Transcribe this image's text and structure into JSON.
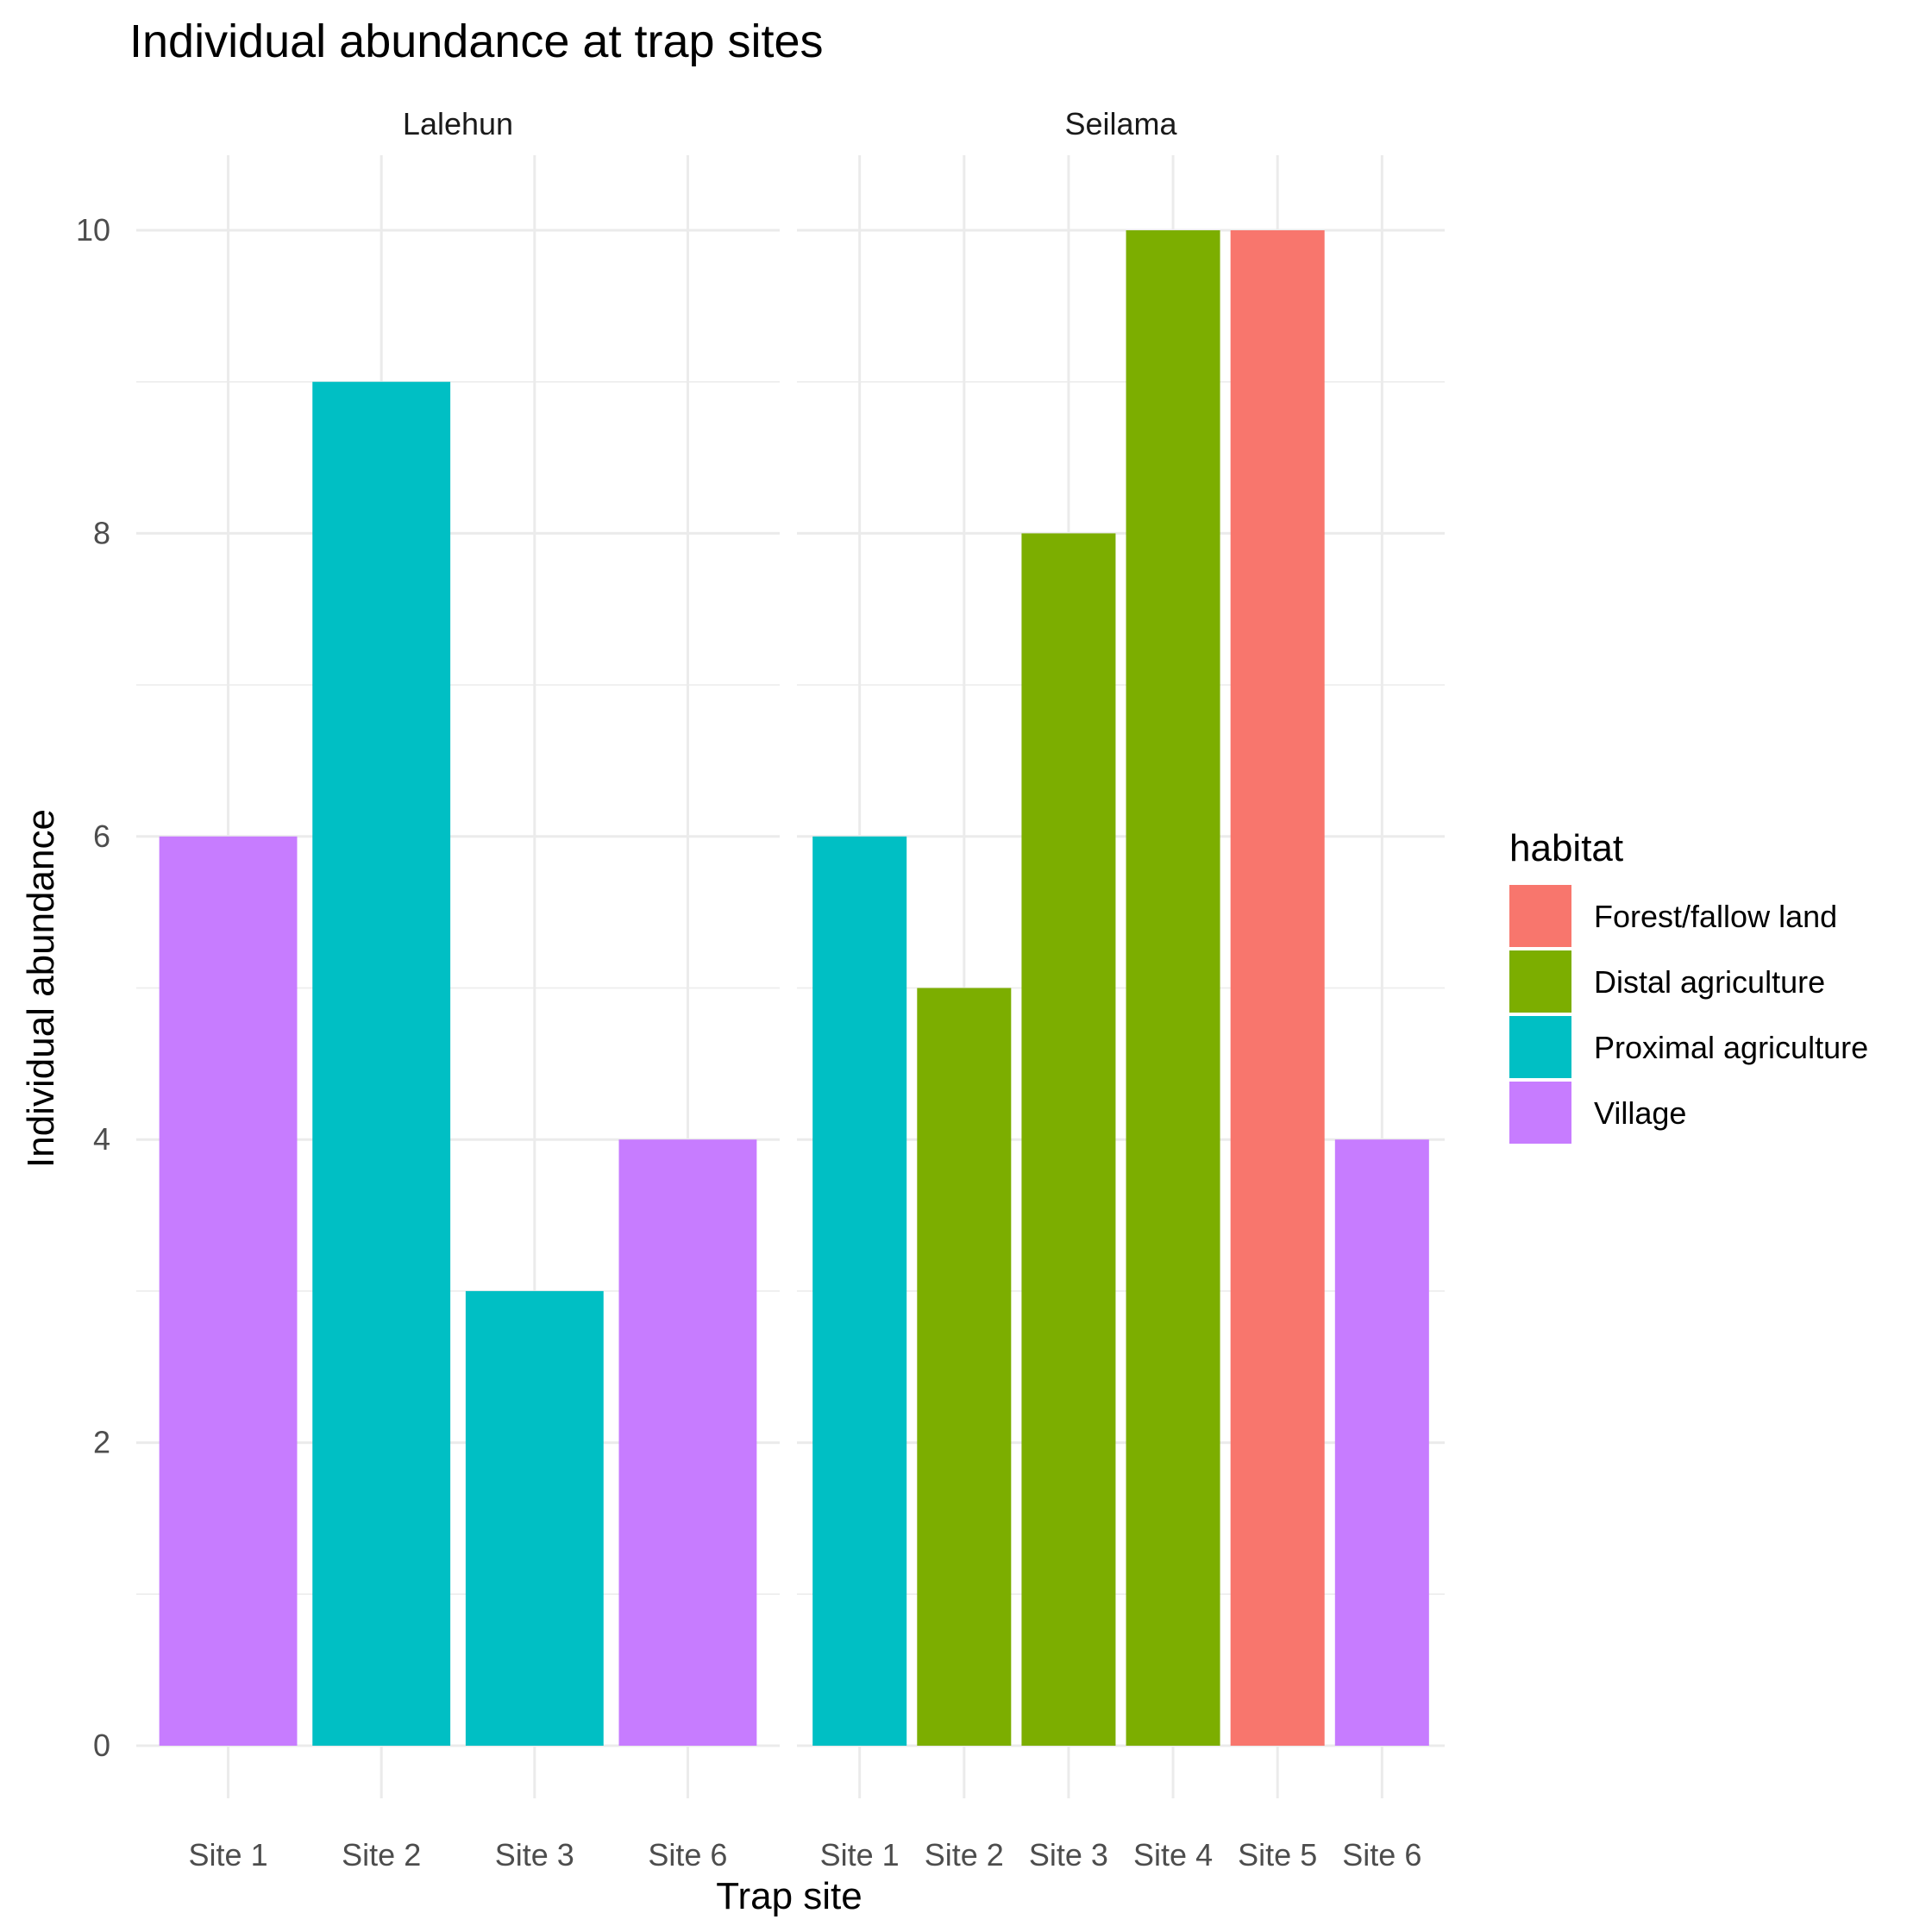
{
  "chart_data": {
    "type": "bar",
    "title": "Individual abundance at trap sites",
    "xlabel": "Trap site",
    "ylabel": "Individual abundance",
    "ylim": [
      0,
      10
    ],
    "yticks": [
      0,
      2,
      4,
      6,
      8,
      10
    ],
    "grid": true,
    "legend": {
      "title": "habitat",
      "position": "right",
      "entries": [
        {
          "label": "Forest/fallow land",
          "color": "#F8766D"
        },
        {
          "label": "Distal agriculture",
          "color": "#7CAE00"
        },
        {
          "label": "Proximal agriculture",
          "color": "#00BFC4"
        },
        {
          "label": "Village",
          "color": "#C77CFF"
        }
      ]
    },
    "facets": [
      {
        "name": "Lalehun",
        "categories": [
          "Site 1",
          "Site 2",
          "Site 3",
          "Site 6"
        ],
        "values": [
          6,
          9,
          3,
          4
        ],
        "habitat": [
          "Village",
          "Proximal agriculture",
          "Proximal agriculture",
          "Village"
        ]
      },
      {
        "name": "Seilama",
        "categories": [
          "Site 1",
          "Site 2",
          "Site 3",
          "Site 4",
          "Site 5",
          "Site 6"
        ],
        "values": [
          6,
          5,
          8,
          10,
          10,
          4
        ],
        "habitat": [
          "Proximal agriculture",
          "Distal agriculture",
          "Distal agriculture",
          "Distal agriculture",
          "Forest/fallow land",
          "Village"
        ]
      }
    ]
  }
}
